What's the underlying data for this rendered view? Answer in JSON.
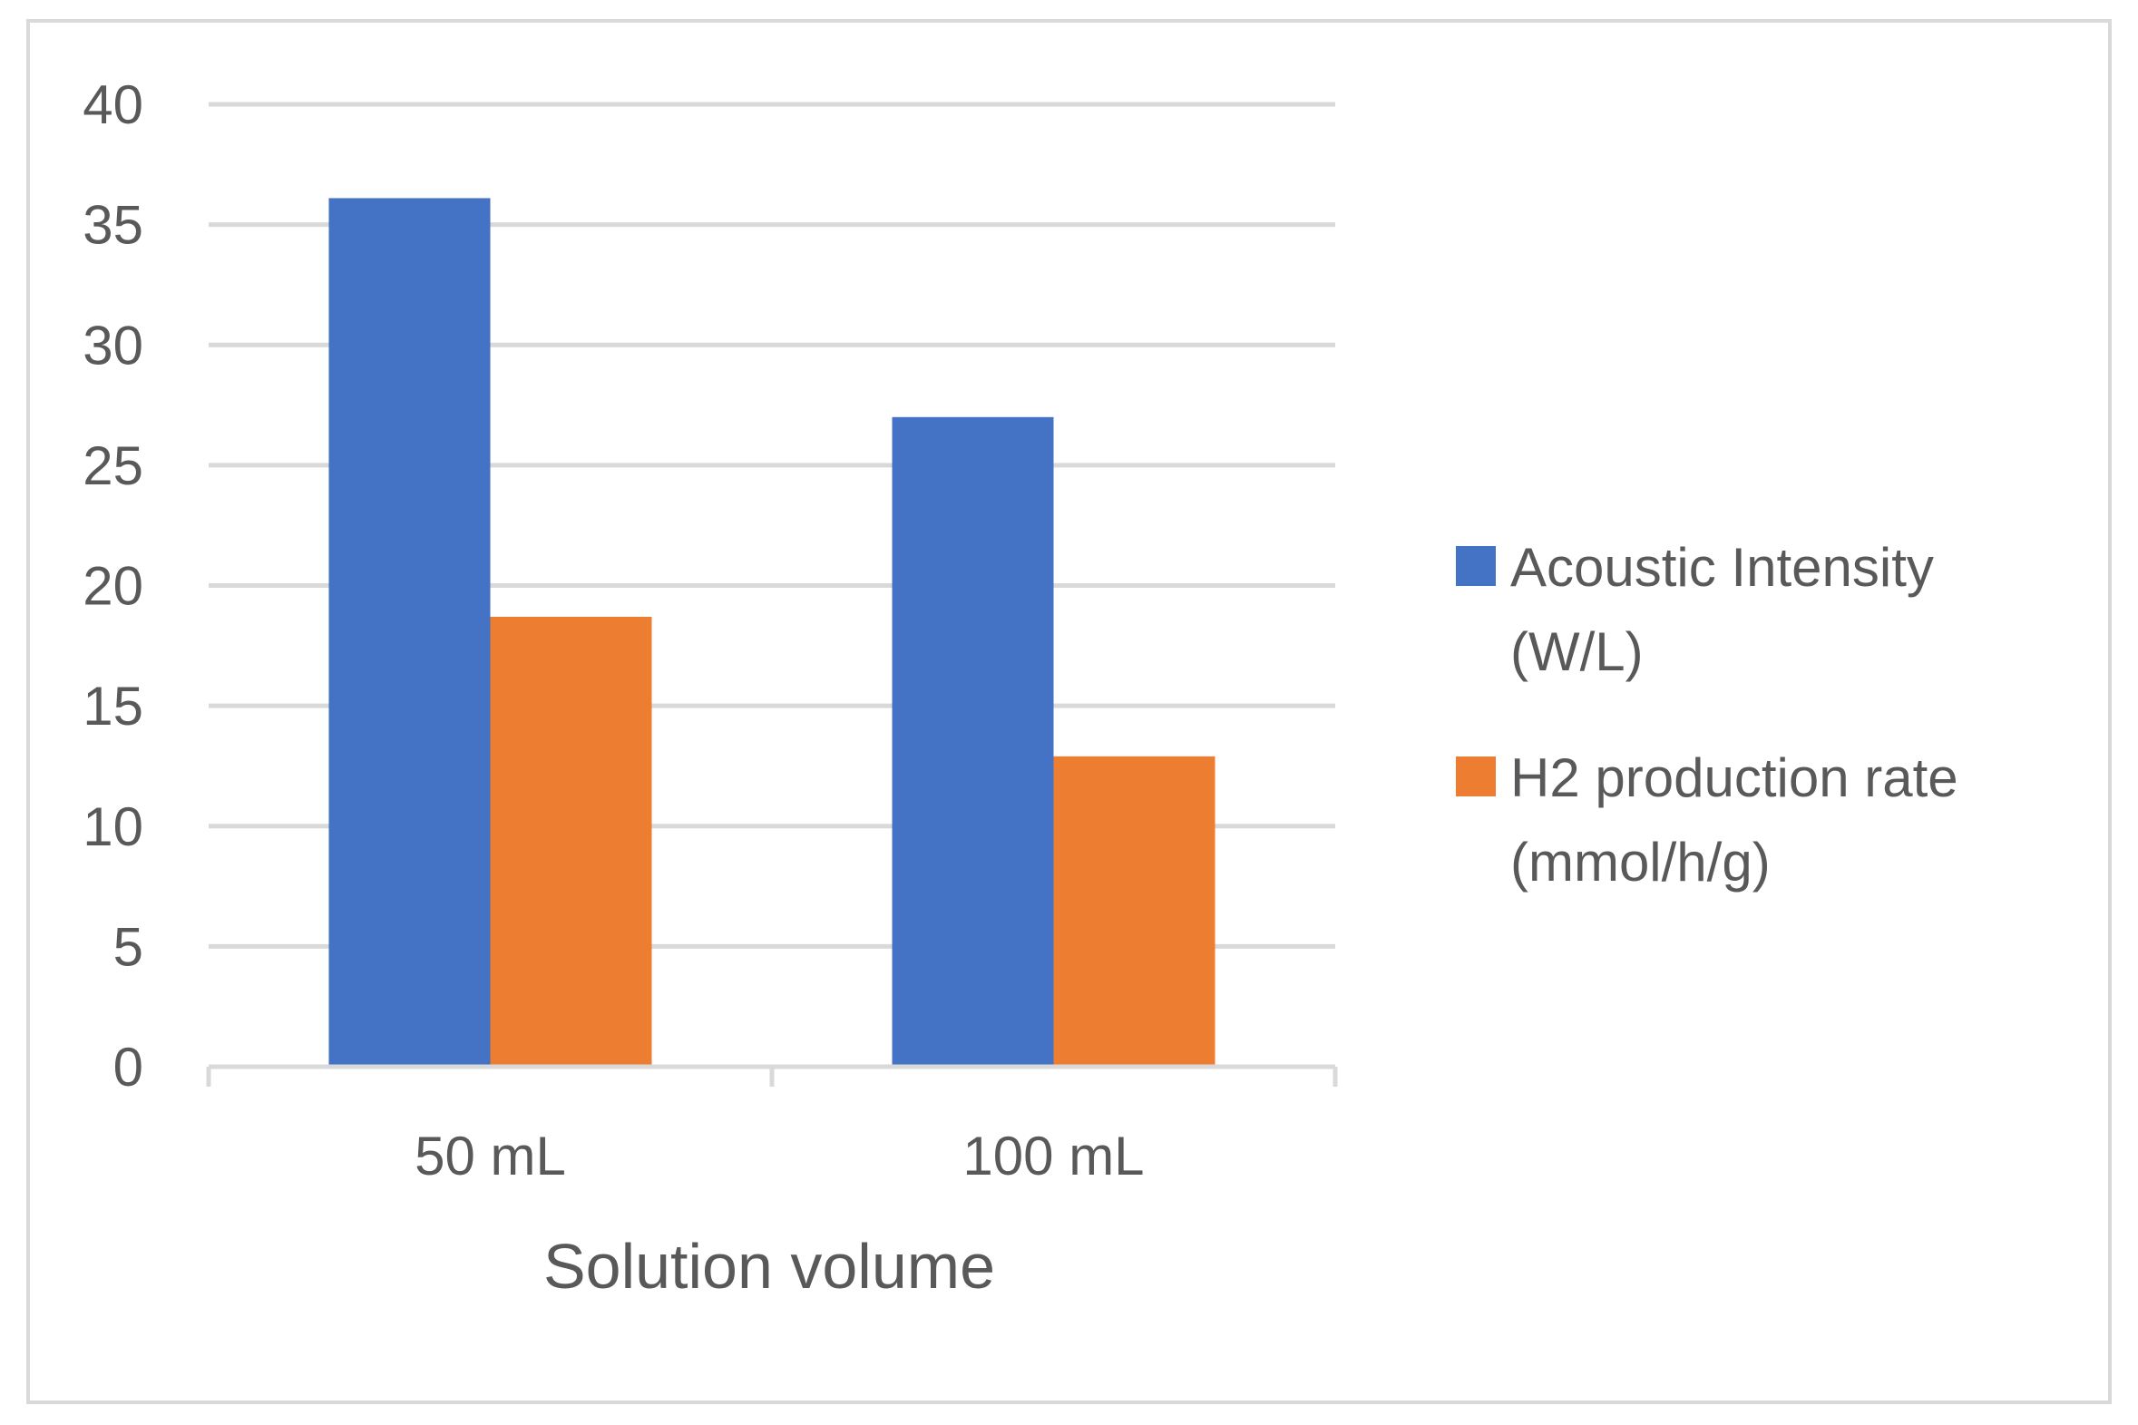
{
  "chart_data": {
    "type": "bar",
    "categories": [
      "50 mL",
      "100 mL"
    ],
    "series": [
      {
        "name": "Acoustic Intensity (W/L)",
        "values": [
          36.1,
          27.0
        ],
        "color": "#4472c4"
      },
      {
        "name": "H2 production rate (mmol/h/g)",
        "values": [
          18.7,
          12.9
        ],
        "color": "#ed7d31"
      }
    ],
    "title": "",
    "xlabel": "Solution volume",
    "ylabel": "",
    "ylim": [
      0,
      40
    ],
    "yticks": [
      0,
      5,
      10,
      15,
      20,
      25,
      30,
      35,
      40
    ],
    "grid": true,
    "legend_position": "right",
    "legend_entries": [
      {
        "lines": [
          "Acoustic Intensity",
          "(W/L)"
        ],
        "color": "#4472c4"
      },
      {
        "lines": [
          "H2 production rate",
          "(mmol/h/g)"
        ],
        "color": "#ed7d31"
      }
    ],
    "gridline_color": "#d9d9d9",
    "text_color": "#595959"
  }
}
